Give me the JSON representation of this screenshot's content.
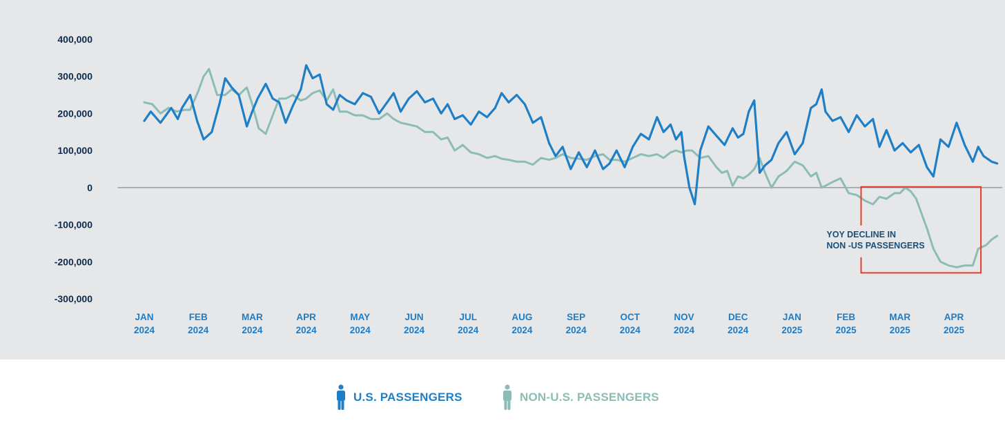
{
  "chart_data": {
    "type": "line",
    "title": "",
    "xlabel": "",
    "ylabel": "",
    "ylim": [
      -300000,
      400000
    ],
    "yticks": [
      400000,
      300000,
      200000,
      100000,
      0,
      -100000,
      -200000,
      -300000
    ],
    "ytick_labels": [
      "400,000",
      "300,000",
      "200,000",
      "100,000",
      "0",
      "-100,000",
      "-200,000",
      "-300,000"
    ],
    "months": [
      {
        "m": "JAN",
        "y": "2024"
      },
      {
        "m": "FEB",
        "y": "2024"
      },
      {
        "m": "MAR",
        "y": "2024"
      },
      {
        "m": "APR",
        "y": "2024"
      },
      {
        "m": "MAY",
        "y": "2024"
      },
      {
        "m": "JUN",
        "y": "2024"
      },
      {
        "m": "JUL",
        "y": "2024"
      },
      {
        "m": "AUG",
        "y": "2024"
      },
      {
        "m": "SEP",
        "y": "2024"
      },
      {
        "m": "OCT",
        "y": "2024"
      },
      {
        "m": "NOV",
        "y": "2024"
      },
      {
        "m": "DEC",
        "y": "2024"
      },
      {
        "m": "JAN",
        "y": "2025"
      },
      {
        "m": "FEB",
        "y": "2025"
      },
      {
        "m": "MAR",
        "y": "2025"
      },
      {
        "m": "APR",
        "y": "2025"
      }
    ],
    "x_start_month": -0.5,
    "x_end_month": 15.9,
    "series": [
      {
        "name": "U.S. PASSENGERS",
        "color": "#1f7fc6",
        "x": [
          0,
          0.12,
          0.3,
          0.5,
          0.62,
          0.7,
          0.85,
          0.98,
          1.1,
          1.25,
          1.4,
          1.5,
          1.62,
          1.75,
          1.9,
          2.0,
          2.1,
          2.25,
          2.38,
          2.5,
          2.62,
          2.75,
          2.9,
          3.0,
          3.12,
          3.25,
          3.38,
          3.5,
          3.62,
          3.75,
          3.9,
          4.05,
          4.2,
          4.35,
          4.5,
          4.62,
          4.75,
          4.9,
          5.05,
          5.2,
          5.35,
          5.5,
          5.62,
          5.75,
          5.9,
          6.05,
          6.2,
          6.35,
          6.5,
          6.62,
          6.75,
          6.9,
          7.05,
          7.2,
          7.35,
          7.5,
          7.62,
          7.75,
          7.9,
          8.05,
          8.2,
          8.35,
          8.5,
          8.62,
          8.75,
          8.9,
          9.05,
          9.2,
          9.35,
          9.5,
          9.62,
          9.75,
          9.85,
          9.95,
          10.0,
          10.1,
          10.2,
          10.3,
          10.45,
          10.6,
          10.75,
          10.9,
          11.0,
          11.1,
          11.2,
          11.3,
          11.4,
          11.5,
          11.62,
          11.75,
          11.9,
          12.05,
          12.2,
          12.35,
          12.45,
          12.55,
          12.62,
          12.75,
          12.9,
          13.05,
          13.2,
          13.35,
          13.5,
          13.62,
          13.75,
          13.9,
          14.05,
          14.2,
          14.35,
          14.5,
          14.62,
          14.75,
          14.9,
          15.05,
          15.2,
          15.35,
          15.45,
          15.55,
          15.7,
          15.8
        ],
        "values": [
          180000,
          205000,
          175000,
          215000,
          185000,
          215000,
          250000,
          180000,
          130000,
          150000,
          230000,
          295000,
          270000,
          250000,
          165000,
          205000,
          240000,
          280000,
          240000,
          230000,
          175000,
          220000,
          265000,
          330000,
          295000,
          305000,
          225000,
          210000,
          250000,
          235000,
          225000,
          255000,
          245000,
          200000,
          230000,
          255000,
          205000,
          240000,
          260000,
          230000,
          240000,
          200000,
          225000,
          185000,
          195000,
          170000,
          205000,
          190000,
          215000,
          255000,
          230000,
          250000,
          225000,
          175000,
          190000,
          120000,
          85000,
          110000,
          50000,
          95000,
          55000,
          100000,
          50000,
          65000,
          100000,
          55000,
          110000,
          145000,
          130000,
          190000,
          150000,
          170000,
          130000,
          150000,
          85000,
          0,
          -45000,
          100000,
          165000,
          140000,
          115000,
          160000,
          135000,
          145000,
          205000,
          235000,
          40000,
          60000,
          75000,
          120000,
          150000,
          90000,
          120000,
          215000,
          225000,
          265000,
          205000,
          180000,
          190000,
          150000,
          195000,
          165000,
          185000,
          110000,
          155000,
          100000,
          120000,
          95000,
          115000,
          55000,
          30000,
          130000,
          110000,
          175000,
          115000,
          70000,
          110000,
          85000,
          70000,
          65000
        ]
      },
      {
        "name": "NON-U.S. PASSENGERS",
        "color": "#8bbcb5",
        "x": [
          0,
          0.15,
          0.3,
          0.45,
          0.6,
          0.75,
          0.85,
          1.0,
          1.1,
          1.2,
          1.35,
          1.5,
          1.62,
          1.75,
          1.9,
          2.0,
          2.12,
          2.25,
          2.38,
          2.5,
          2.62,
          2.75,
          2.9,
          3.0,
          3.12,
          3.25,
          3.38,
          3.5,
          3.62,
          3.75,
          3.9,
          4.05,
          4.2,
          4.35,
          4.5,
          4.62,
          4.75,
          4.9,
          5.05,
          5.2,
          5.35,
          5.5,
          5.62,
          5.75,
          5.9,
          6.05,
          6.2,
          6.35,
          6.5,
          6.62,
          6.75,
          6.9,
          7.05,
          7.2,
          7.35,
          7.5,
          7.62,
          7.75,
          7.9,
          8.05,
          8.2,
          8.35,
          8.5,
          8.62,
          8.75,
          8.9,
          9.05,
          9.2,
          9.35,
          9.5,
          9.62,
          9.75,
          9.85,
          9.95,
          10.05,
          10.15,
          10.3,
          10.45,
          10.6,
          10.7,
          10.8,
          10.9,
          11.0,
          11.1,
          11.2,
          11.3,
          11.4,
          11.5,
          11.62,
          11.75,
          11.9,
          12.05,
          12.2,
          12.35,
          12.45,
          12.55,
          12.62,
          12.75,
          12.9,
          13.05,
          13.2,
          13.35,
          13.5,
          13.62,
          13.75,
          13.9,
          14.0,
          14.1,
          14.2,
          14.3,
          14.4,
          14.5,
          14.62,
          14.75,
          14.9,
          15.05,
          15.2,
          15.35,
          15.45,
          15.6,
          15.7,
          15.8
        ],
        "values": [
          230000,
          225000,
          200000,
          215000,
          205000,
          210000,
          210000,
          260000,
          300000,
          320000,
          250000,
          250000,
          265000,
          250000,
          270000,
          225000,
          160000,
          145000,
          195000,
          240000,
          240000,
          250000,
          235000,
          240000,
          255000,
          262000,
          235000,
          265000,
          205000,
          205000,
          195000,
          195000,
          185000,
          185000,
          200000,
          185000,
          175000,
          170000,
          165000,
          150000,
          150000,
          130000,
          135000,
          100000,
          115000,
          95000,
          90000,
          80000,
          85000,
          78000,
          75000,
          70000,
          70000,
          62000,
          80000,
          75000,
          80000,
          90000,
          80000,
          78000,
          75000,
          85000,
          90000,
          75000,
          75000,
          70000,
          80000,
          90000,
          85000,
          90000,
          80000,
          95000,
          100000,
          95000,
          100000,
          100000,
          80000,
          85000,
          55000,
          40000,
          45000,
          5000,
          30000,
          25000,
          35000,
          50000,
          80000,
          40000,
          0,
          30000,
          45000,
          70000,
          60000,
          30000,
          40000,
          0,
          5000,
          15000,
          25000,
          -15000,
          -20000,
          -35000,
          -45000,
          -25000,
          -30000,
          -15000,
          -15000,
          0,
          -10000,
          -30000,
          -70000,
          -110000,
          -165000,
          -200000,
          -210000,
          -215000,
          -210000,
          -210000,
          -165000,
          -155000,
          -140000,
          -130000
        ]
      }
    ],
    "annotation": {
      "lines": [
        "YOY DECLINE IN",
        "NON -US PASSENGERS"
      ],
      "box_color": "#e63c2a",
      "box_x_range": [
        13.28,
        15.5
      ],
      "box_y_range": [
        -230000,
        2000
      ]
    },
    "legend_position": "bottom-center"
  },
  "colors": {
    "plot_background": "#e6e7e8",
    "zero_line": "#8a8d8f",
    "us_series": "#1f7fc6",
    "non_us_series": "#8bbcb5",
    "ytick_text": "#0d2a4a",
    "xtick_text": "#1f7cc4"
  },
  "legend": {
    "us_label": "U.S. PASSENGERS",
    "us_icon": "person-icon",
    "non_us_label": "NON-U.S. PASSENGERS",
    "non_us_icon": "person-icon"
  }
}
